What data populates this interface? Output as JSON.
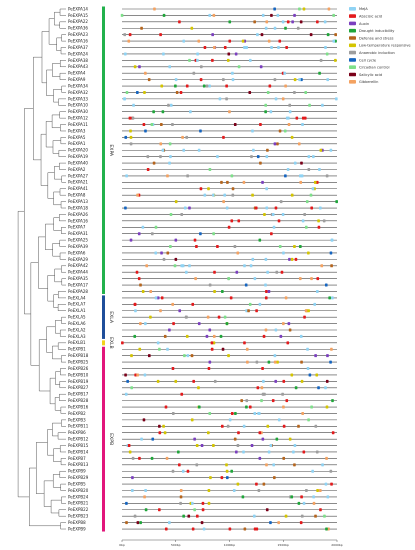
{
  "genes": [
    "PeEXPA14",
    "PeEXPA15",
    "PeEXPA22",
    "PeEXPA36",
    "PeEXPA23",
    "PeEXPA16",
    "PeEXPA37",
    "PeEXPA24",
    "PeEXPA38",
    "PeEXPA43",
    "PeEXPA4",
    "PeEXPA9",
    "PeEXPA34",
    "PeEXPA32",
    "PeEXPA33",
    "PeEXPA10",
    "PeEXPA30",
    "PeEXPA12",
    "PeEXPA11",
    "PeEXPA3",
    "PeEXPA5",
    "PeEXPA1",
    "PeEXPA20",
    "PeEXPA19",
    "PeEXPA40",
    "PeEXPA2",
    "PeEXPA27",
    "PeEXPA21",
    "PeEXPA41",
    "PeEXPA8",
    "PeEXPA13",
    "PeEXPA18",
    "PeEXPA26",
    "PeEXPA16",
    "PeEXPA7",
    "PeEXPA31",
    "PeEXPA25",
    "PeEXPA39",
    "PeEXPA6",
    "PeEXPA29",
    "PeEXPA42",
    "PeEXPA44",
    "PeEXPA35",
    "PeEXPA17",
    "PeEXPA28",
    "PeEXLA4",
    "PeEXLA7",
    "PeEXLA1",
    "PeEXLA5",
    "PeEXLA6",
    "PeEXLA2",
    "PeEXLA3",
    "PeEXLB1",
    "PeEXPB1",
    "PeEXPB18",
    "PeEXPB25",
    "PeEXPB26",
    "PeEXPB10",
    "PeEXPB19",
    "PeEXPB27",
    "PeEXPB17",
    "PeEXPB28",
    "PeEXPB16",
    "PeEXPB2",
    "PeEXPB3",
    "PeEXPB11",
    "PeEXPB6",
    "PeEXPB12",
    "PeEXPB15",
    "PeEXPB14",
    "PeEXPB7",
    "PeEXPB13",
    "PeEXPB9",
    "PeEXPB29",
    "PeEXPB5",
    "PeEXPB20",
    "PeEXPB24",
    "PeEXPB21",
    "PeEXPB22",
    "PeEXPB23",
    "PeEXPB8",
    "PeEXPB9"
  ],
  "groups": [
    {
      "name": "EXPA",
      "start": 0,
      "end": 44,
      "color": "#22b14c"
    },
    {
      "name": "EXLA",
      "start": 45,
      "end": 51,
      "color": "#1f4e9a"
    },
    {
      "name": "EXLB",
      "start": 52,
      "end": 52,
      "color": "#f2d21b"
    },
    {
      "name": "EXPB",
      "start": 53,
      "end": 81,
      "color": "#e2167b"
    }
  ],
  "legend": [
    {
      "label": "MeJA",
      "color": "#8fd3f4"
    },
    {
      "label": "Abscisic acid",
      "color": "#e31a1c"
    },
    {
      "label": "Auxin",
      "color": "#7b3fbf"
    },
    {
      "label": "Drought inducibility",
      "color": "#1fa63a"
    },
    {
      "label": "Defense and stress",
      "color": "#b5651d"
    },
    {
      "label": "Low-temperature responsive",
      "color": "#d4c500"
    },
    {
      "label": "Anaerobic induction",
      "color": "#9e9e9e"
    },
    {
      "label": "Cell cycle",
      "color": "#1565c0"
    },
    {
      "label": "Circadian control",
      "color": "#7ee08a"
    },
    {
      "label": "Salicylic acid",
      "color": "#7a0019"
    },
    {
      "label": "Gibberellin",
      "color": "#f4a261"
    }
  ],
  "axis": {
    "ticks": [
      "0bp",
      "500bp",
      "1000bp",
      "1500bp",
      "2000bp"
    ],
    "range": [
      0,
      2000
    ]
  },
  "colors": {
    "line": "#444444",
    "tree": "#555555"
  }
}
